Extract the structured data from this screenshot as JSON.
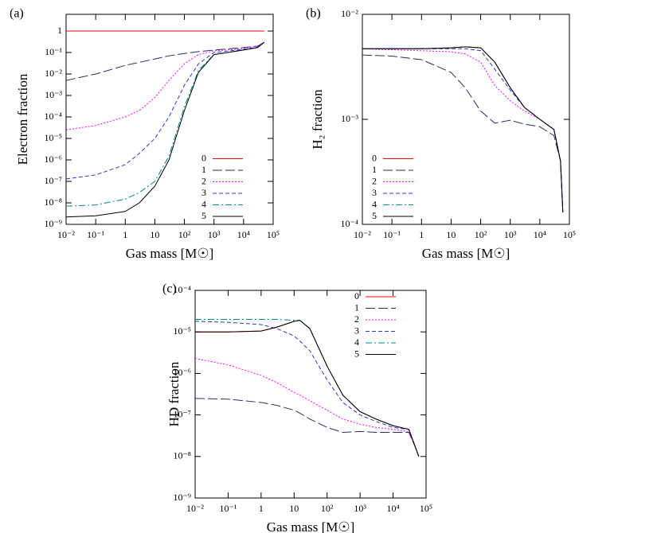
{
  "chart_data": [
    {
      "type": "line",
      "panel": "(a)",
      "xlabel": "Gas mass [M☉]",
      "ylabel": "Electron fraction",
      "xscale": "log",
      "yscale": "log",
      "legend": "lower right",
      "xlim": [
        0.01,
        100000
      ],
      "ylim": [
        1e-09,
        6
      ],
      "xticks": [
        {
          "value": 0.01,
          "label": "10⁻²"
        },
        {
          "value": 0.1,
          "label": "10⁻¹"
        },
        1,
        10,
        {
          "value": 100,
          "label": "10²"
        },
        {
          "value": 1000,
          "label": "10³"
        },
        {
          "value": 10000,
          "label": "10⁴"
        },
        {
          "value": 100000,
          "label": "10⁵"
        }
      ],
      "yticks": [
        {
          "value": 1e-09,
          "label": "10⁻⁹"
        },
        {
          "value": 1e-08,
          "label": "10⁻⁸"
        },
        {
          "value": 1e-07,
          "label": "10⁻⁷"
        },
        {
          "value": 1e-06,
          "label": "10⁻⁶"
        },
        {
          "value": 1e-05,
          "label": "10⁻⁵"
        },
        {
          "value": 0.0001,
          "label": "10⁻⁴"
        },
        {
          "value": 0.001,
          "label": "10⁻³"
        },
        {
          "value": 0.01,
          "label": "10⁻²"
        },
        {
          "value": 0.1,
          "label": "10⁻¹"
        },
        1
      ],
      "x": [
        0.01,
        0.1,
        1,
        3,
        10,
        30,
        100,
        300,
        1000,
        10000,
        30000,
        50000
      ],
      "series": [
        {
          "name": "0",
          "color": "#ff0000",
          "dash": "none",
          "values": [
            1,
            1,
            1,
            1,
            1,
            1,
            1,
            1,
            1,
            1,
            1,
            1
          ]
        },
        {
          "name": "1",
          "color": "#2b2b66",
          "dash": "12,4",
          "values": [
            0.005,
            0.01,
            0.025,
            0.035,
            0.05,
            0.07,
            0.09,
            0.11,
            0.13,
            0.17,
            0.2,
            0.3
          ]
        },
        {
          "name": "2",
          "color": "#ff00ff",
          "dash": "2,2",
          "values": [
            2.5e-05,
            4e-05,
            0.0001,
            0.0002,
            0.0008,
            0.005,
            0.03,
            0.08,
            0.12,
            0.15,
            0.2,
            0.3
          ]
        },
        {
          "name": "3",
          "color": "#3333cc",
          "dash": "5,3",
          "values": [
            1.3e-07,
            2e-07,
            6e-07,
            2e-06,
            1e-05,
            0.0001,
            0.003,
            0.03,
            0.1,
            0.14,
            0.18,
            0.3
          ]
        },
        {
          "name": "4",
          "color": "#008b8b",
          "dash": "8,3,2,3",
          "values": [
            7e-09,
            8e-09,
            1.5e-08,
            3e-08,
            1e-07,
            1.5e-06,
            0.0003,
            0.015,
            0.08,
            0.13,
            0.17,
            0.3
          ]
        },
        {
          "name": "5",
          "color": "#000000",
          "dash": "none",
          "values": [
            2.2e-09,
            2.5e-09,
            4e-09,
            1e-08,
            6e-08,
            1e-06,
            0.0002,
            0.012,
            0.08,
            0.13,
            0.17,
            0.3
          ]
        }
      ]
    },
    {
      "type": "line",
      "panel": "(b)",
      "xlabel": "Gas mass [M☉]",
      "ylabel": "H₂ fraction",
      "xscale": "log",
      "yscale": "log",
      "legend": "lower left",
      "xlim": [
        0.01,
        100000
      ],
      "ylim": [
        0.0001,
        0.01
      ],
      "xticks": [
        {
          "value": 0.01,
          "label": "10⁻²"
        },
        {
          "value": 0.1,
          "label": "10⁻¹"
        },
        1,
        10,
        {
          "value": 100,
          "label": "10²"
        },
        {
          "value": 1000,
          "label": "10³"
        },
        {
          "value": 10000,
          "label": "10⁴"
        },
        {
          "value": 100000,
          "label": "10⁵"
        }
      ],
      "yticks": [
        {
          "value": 0.0001,
          "label": "10⁻⁴"
        },
        {
          "value": 0.001,
          "label": "10⁻³"
        },
        {
          "value": 0.01,
          "label": "10⁻²"
        }
      ],
      "x": [
        0.01,
        0.1,
        1,
        10,
        30,
        100,
        300,
        1000,
        3000,
        10000,
        30000,
        50000,
        60000
      ],
      "series": [
        {
          "name": "0",
          "color": "#ff0000",
          "dash": "none",
          "values": [
            0.0047,
            0.0047,
            0.0047,
            0.0048,
            0.0049,
            0.0048,
            0.0035,
            0.002,
            0.0013,
            0.001,
            0.0008,
            0.0004,
            0.00013
          ]
        },
        {
          "name": "1",
          "color": "#2b2b66",
          "dash": "12,4",
          "values": [
            0.0041,
            0.004,
            0.0037,
            0.0028,
            0.002,
            0.0012,
            0.00092,
            0.00098,
            0.0009,
            0.00085,
            0.0007,
            0.0004,
            0.00013
          ]
        },
        {
          "name": "2",
          "color": "#ff00ff",
          "dash": "2,2",
          "values": [
            0.0047,
            0.0046,
            0.0045,
            0.0044,
            0.0042,
            0.0035,
            0.0021,
            0.0015,
            0.0012,
            0.001,
            0.0008,
            0.0004,
            0.00013
          ]
        },
        {
          "name": "3",
          "color": "#3333cc",
          "dash": "5,3",
          "values": [
            0.0047,
            0.0047,
            0.0047,
            0.0047,
            0.0047,
            0.0045,
            0.003,
            0.0019,
            0.0013,
            0.001,
            0.0008,
            0.0004,
            0.00013
          ]
        },
        {
          "name": "4",
          "color": "#008b8b",
          "dash": "8,3,2,3",
          "values": [
            0.0047,
            0.0047,
            0.0047,
            0.0048,
            0.0049,
            0.0048,
            0.0035,
            0.002,
            0.0013,
            0.001,
            0.0008,
            0.0004,
            0.00013
          ]
        },
        {
          "name": "5",
          "color": "#000000",
          "dash": "none",
          "values": [
            0.0047,
            0.0047,
            0.0047,
            0.0048,
            0.0049,
            0.0048,
            0.0035,
            0.002,
            0.0013,
            0.001,
            0.0008,
            0.0004,
            0.00013
          ]
        }
      ]
    },
    {
      "type": "line",
      "panel": "(c)",
      "xlabel": "Gas mass [M☉]",
      "ylabel": "HD fraction",
      "xscale": "log",
      "yscale": "log",
      "legend": "upper right",
      "xlim": [
        0.01,
        100000
      ],
      "ylim": [
        1e-09,
        0.0001
      ],
      "xticks": [
        {
          "value": 0.01,
          "label": "10⁻²"
        },
        {
          "value": 0.1,
          "label": "10⁻¹"
        },
        1,
        10,
        {
          "value": 100,
          "label": "10²"
        },
        {
          "value": 1000,
          "label": "10³"
        },
        {
          "value": 10000,
          "label": "10⁴"
        },
        {
          "value": 100000,
          "label": "10⁵"
        }
      ],
      "yticks": [
        {
          "value": 1e-09,
          "label": "10⁻⁹"
        },
        {
          "value": 1e-08,
          "label": "10⁻⁸"
        },
        {
          "value": 1e-07,
          "label": "10⁻⁷"
        },
        {
          "value": 1e-06,
          "label": "10⁻⁶"
        },
        {
          "value": 1e-05,
          "label": "10⁻⁵"
        },
        {
          "value": 0.0001,
          "label": "10⁻⁴"
        }
      ],
      "x": [
        0.01,
        0.1,
        1,
        3,
        10,
        15,
        30,
        100,
        300,
        1000,
        3000,
        10000,
        30000,
        50000,
        60000
      ],
      "series": [
        {
          "name": "0",
          "color": "#ff0000",
          "dash": "none",
          "values": [
            1e-05,
            1e-05,
            1.05e-05,
            1.3e-05,
            1.8e-05,
            1.9e-05,
            1.2e-05,
            1.5e-06,
            3e-07,
            1.2e-07,
            8e-08,
            5.5e-08,
            4.5e-08,
            1.5e-08,
            1e-08
          ]
        },
        {
          "name": "1",
          "color": "#2b2b66",
          "dash": "12,4",
          "values": [
            2.5e-07,
            2.4e-07,
            2e-07,
            1.7e-07,
            1.3e-07,
            1.1e-07,
            8e-08,
            5e-08,
            3.8e-08,
            4e-08,
            3.8e-08,
            3.8e-08,
            3.8e-08,
            1.5e-08,
            1e-08
          ]
        },
        {
          "name": "2",
          "color": "#ff00ff",
          "dash": "2,2",
          "values": [
            2.3e-06,
            1.6e-06,
            9e-07,
            6e-07,
            3.5e-07,
            3e-07,
            2.2e-07,
            1.3e-07,
            8e-08,
            6e-08,
            5e-08,
            4.5e-08,
            4e-08,
            1.5e-08,
            1e-08
          ]
        },
        {
          "name": "3",
          "color": "#3333cc",
          "dash": "5,3",
          "values": [
            1.8e-05,
            1.7e-05,
            1.5e-05,
            1.2e-05,
            8e-06,
            6e-06,
            3.5e-06,
            7e-07,
            2e-07,
            1e-07,
            7e-08,
            5e-08,
            4.5e-08,
            1.5e-08,
            1e-08
          ]
        },
        {
          "name": "4",
          "color": "#008b8b",
          "dash": "8,3,2,3",
          "values": [
            2e-05,
            2e-05,
            2e-05,
            2e-05,
            1.9e-05,
            1.9e-05,
            1.2e-05,
            1.5e-06,
            3e-07,
            1.2e-07,
            8e-08,
            5.5e-08,
            4.5e-08,
            1.5e-08,
            1e-08
          ]
        },
        {
          "name": "5",
          "color": "#000000",
          "dash": "none",
          "values": [
            1e-05,
            1e-05,
            1.05e-05,
            1.3e-05,
            1.8e-05,
            1.9e-05,
            1.2e-05,
            1.5e-06,
            3e-07,
            1.2e-07,
            8e-08,
            5.5e-08,
            4.5e-08,
            1.5e-08,
            1e-08
          ]
        }
      ]
    }
  ]
}
